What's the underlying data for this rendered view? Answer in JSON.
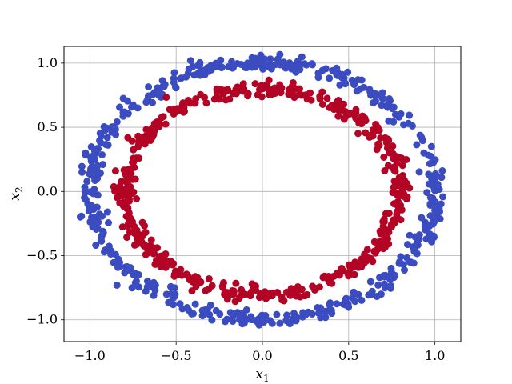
{
  "chart_data": {
    "type": "scatter",
    "title": "",
    "xlabel": "x_1",
    "ylabel": "x_2",
    "xlim": [
      -1.15,
      1.15
    ],
    "ylim": [
      -1.17,
      1.13
    ],
    "xticks": [
      -1.0,
      -0.5,
      0.0,
      0.5,
      1.0
    ],
    "yticks": [
      -1.0,
      -0.5,
      0.0,
      0.5,
      1.0
    ],
    "xtick_labels": [
      "−1.0",
      "−0.5",
      "0.0",
      "0.5",
      "1.0"
    ],
    "ytick_labels": [
      "−1.0",
      "−0.5",
      "0.0",
      "0.5",
      "1.0"
    ],
    "grid": true,
    "series": [
      {
        "color": "#3b4cc0",
        "shape": "ring",
        "radius": 1.0,
        "n_points": 500,
        "noise_sd": 0.03
      },
      {
        "color": "#b40426",
        "shape": "ring",
        "radius": 0.8,
        "n_points": 500,
        "noise_sd": 0.03
      }
    ]
  }
}
